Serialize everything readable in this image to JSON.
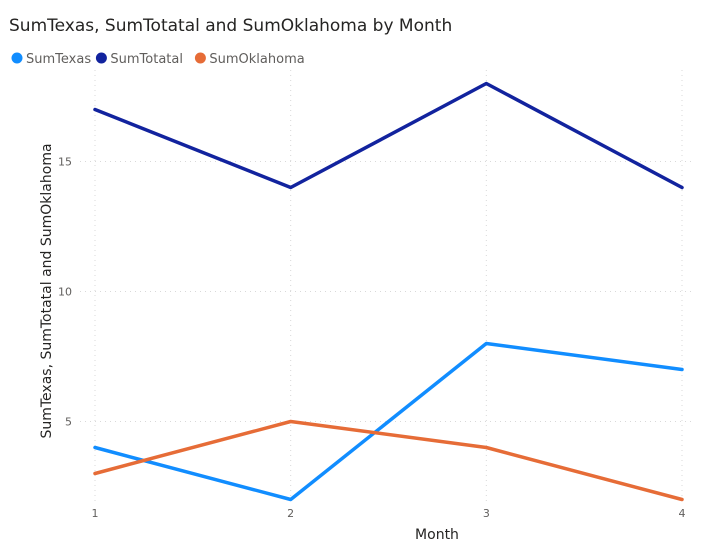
{
  "chart_data": {
    "type": "line",
    "title": "SumTexas, SumTotatal and SumOklahoma by Month",
    "xlabel": "Month",
    "ylabel": "SumTexas, SumTotatal and SumOklahoma",
    "x": [
      1,
      2,
      3,
      4
    ],
    "x_tick_labels": [
      "1",
      "2",
      "3",
      "4"
    ],
    "y_ticks": [
      5,
      10,
      15
    ],
    "y_tick_labels": [
      "5",
      "10",
      "15"
    ],
    "ylim": [
      2,
      18
    ],
    "grid": true,
    "legend_position": "top-left",
    "series": [
      {
        "name": "SumTexas",
        "color": "#118DFF",
        "values": [
          4,
          2,
          8,
          7
        ]
      },
      {
        "name": "SumTotatal",
        "color": "#12239E",
        "values": [
          17,
          14,
          18,
          14
        ]
      },
      {
        "name": "SumOklahoma",
        "color": "#E66C37",
        "values": [
          3,
          5,
          4,
          2
        ]
      }
    ]
  }
}
